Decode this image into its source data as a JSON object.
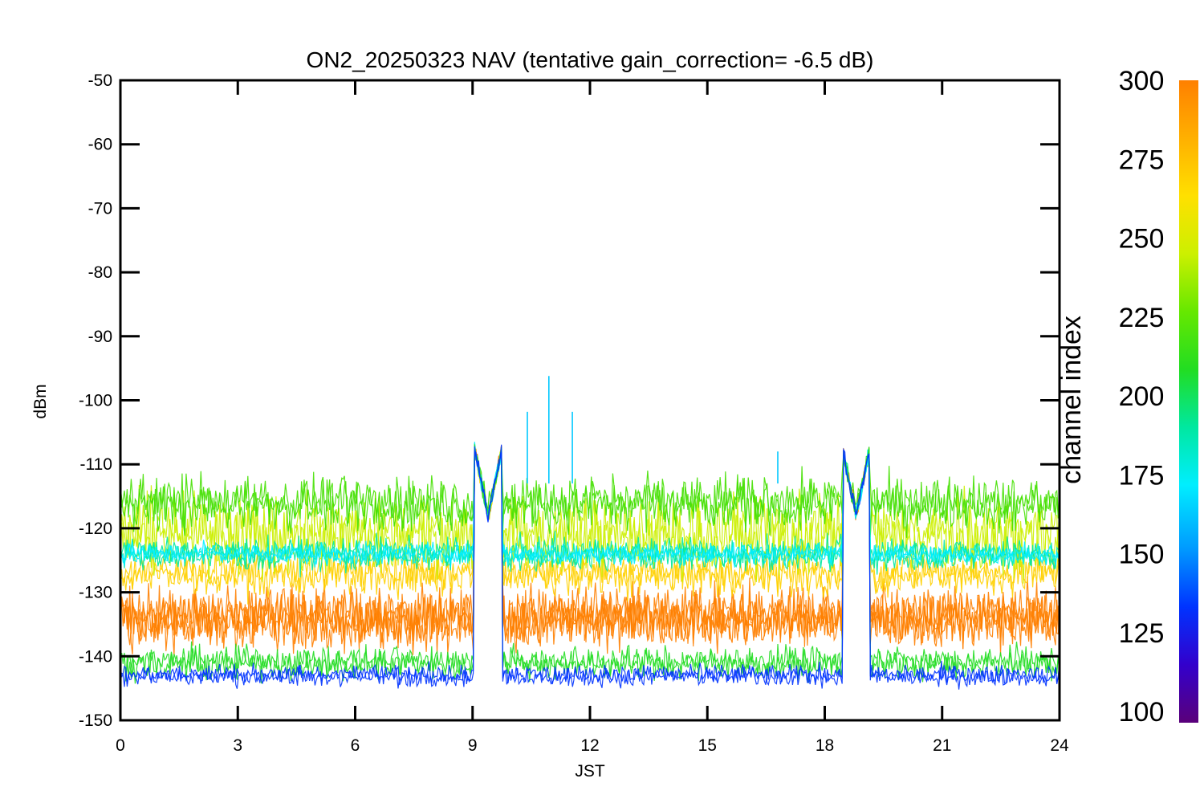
{
  "chart_data": {
    "type": "line",
    "title": "ON2_20250323 NAV (tentative gain_correction= -6.5 dB)",
    "xlabel": "JST",
    "ylabel": "dBm",
    "xlim": [
      0,
      24
    ],
    "ylim": [
      -150,
      -50
    ],
    "x_ticks": [
      0,
      3,
      6,
      9,
      12,
      15,
      18,
      21,
      24
    ],
    "y_ticks": [
      -50,
      -60,
      -70,
      -80,
      -90,
      -100,
      -110,
      -120,
      -130,
      -140,
      -150
    ],
    "colorbar": {
      "label": "channel index",
      "range": [
        100,
        300
      ],
      "ticks": [
        300,
        275,
        250,
        225,
        200,
        175,
        150,
        125,
        100
      ],
      "colormap": [
        "#5a007a",
        "#3300cc",
        "#0033ff",
        "#0099ff",
        "#00eeff",
        "#00e8a0",
        "#22dd22",
        "#66e800",
        "#ccf000",
        "#ffe000",
        "#ffb000",
        "#ff8000"
      ]
    },
    "grid": false,
    "series": [
      {
        "channel_index": 285,
        "color": "#ff8000",
        "band_center": -134,
        "band_halfwidth": 5.5
      },
      {
        "channel_index": 270,
        "color": "#ffd000",
        "band_center": -127,
        "band_halfwidth": 4
      },
      {
        "channel_index": 255,
        "color": "#ccf000",
        "band_center": -121,
        "band_halfwidth": 7
      },
      {
        "channel_index": 235,
        "color": "#44e000",
        "band_center": -116,
        "band_halfwidth": 5
      },
      {
        "channel_index": 205,
        "color": "#00e8a0",
        "band_center": -124,
        "band_halfwidth": 3
      },
      {
        "channel_index": 180,
        "color": "#00eeff",
        "band_center": -124,
        "band_halfwidth": 2
      },
      {
        "channel_index": 220,
        "color": "#22dd22",
        "band_center": -141,
        "band_halfwidth": 3
      },
      {
        "channel_index": 140,
        "color": "#0033ff",
        "band_center": -143,
        "band_halfwidth": 2
      }
    ],
    "annotations": [
      {
        "x": 10.95,
        "y": -96.2,
        "note": "spike"
      },
      {
        "x": 10.4,
        "y": -101.8,
        "note": "spike"
      },
      {
        "x": 11.55,
        "y": -101.8,
        "note": "spike"
      },
      {
        "x": 16.8,
        "y": -108,
        "note": "spike"
      },
      {
        "x": 9.4,
        "y": -117,
        "note": "peak"
      },
      {
        "x": 18.8,
        "y": -117,
        "note": "peak"
      }
    ]
  }
}
